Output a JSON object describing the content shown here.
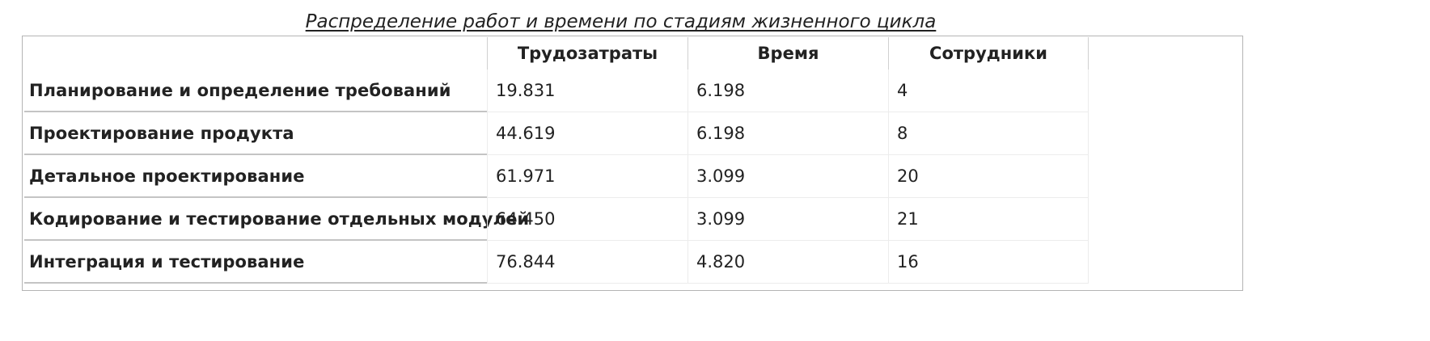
{
  "table": {
    "caption": "Распределение работ и времени по стадиям жизненного цикла",
    "columns": [
      "Трудозатраты",
      "Время",
      "Сотрудники"
    ],
    "rows": [
      {
        "label": "Планирование и определение требований",
        "values": [
          "19.831",
          "6.198",
          "4"
        ]
      },
      {
        "label": "Проектирование продукта",
        "values": [
          "44.619",
          "6.198",
          "8"
        ]
      },
      {
        "label": "Детальное проектирование",
        "values": [
          "61.971",
          "3.099",
          "20"
        ]
      },
      {
        "label": "Кодирование и тестирование отдельных модулей",
        "values": [
          "64.450",
          "3.099",
          "21"
        ]
      },
      {
        "label": "Интеграция и тестирование",
        "values": [
          "76.844",
          "4.820",
          "16"
        ]
      }
    ]
  }
}
